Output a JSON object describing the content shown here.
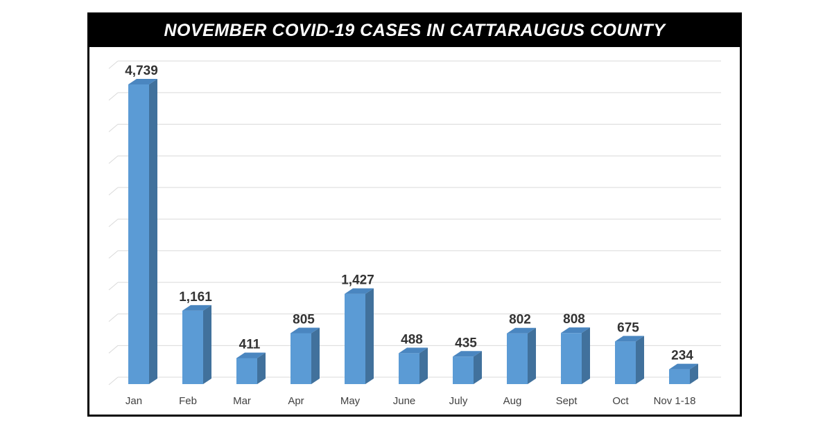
{
  "chart_data": {
    "type": "bar",
    "title": "NOVEMBER COVID-19 CASES IN CATTARAUGUS COUNTY",
    "categories": [
      "Jan",
      "Feb",
      "Mar",
      "Apr",
      "May",
      "June",
      "July",
      "Aug",
      "Sept",
      "Oct",
      "Nov 1-18"
    ],
    "values": [
      4739,
      1161,
      411,
      805,
      1427,
      488,
      435,
      802,
      808,
      675,
      234
    ],
    "data_labels": [
      "4,739",
      "1,161",
      "411",
      "805",
      "1,427",
      "488",
      "435",
      "802",
      "808",
      "675",
      "234"
    ],
    "xlabel": "",
    "ylabel": "",
    "ylim": [
      0,
      5000
    ],
    "grid": true,
    "grid_step": 500,
    "y_tick_labels_shown": false,
    "style": "3d-column",
    "colors": {
      "bar_front": "#5b9bd5",
      "bar_side": "#41719c",
      "bar_top": "#4a86c0",
      "title_bg": "#000000",
      "title_text": "#ffffff"
    }
  }
}
